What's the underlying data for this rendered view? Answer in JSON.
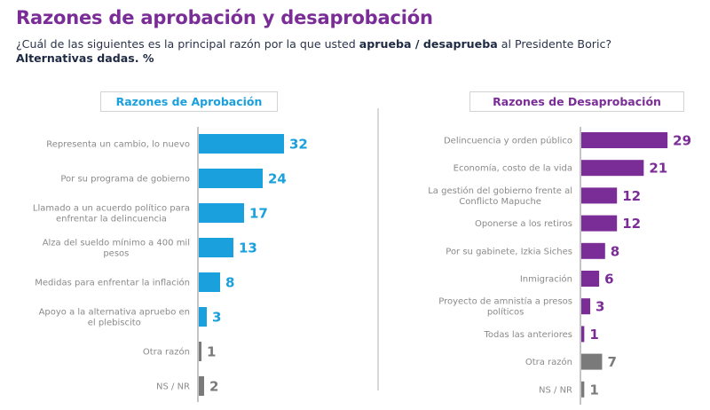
{
  "header": {
    "title": "Razones de aprobación y desaprobación",
    "subtitle_pre": "¿Cuál de las siguientes es la principal razón por la que usted ",
    "subtitle_bold": "aprueba / desaprueba",
    "subtitle_post": " al Presidente Boric?",
    "subtitle_line2": "Alternativas dadas. %"
  },
  "colors": {
    "approval": "#1aa0dc",
    "disapproval": "#7b2d97",
    "other": "#7a7a7a",
    "title": "#7b2d97"
  },
  "chart_data": [
    {
      "type": "bar",
      "orientation": "horizontal",
      "title": "Razones de Aprobación",
      "unit": "%",
      "categories": [
        [
          "Representa un cambio, lo nuevo"
        ],
        [
          "Por su programa de gobierno"
        ],
        [
          "Llamado a un acuerdo político para",
          "enfrentar la delincuencia"
        ],
        [
          "Alza del sueldo mínimo a 400 mil",
          "pesos"
        ],
        [
          "Medidas para enfrentar la inflación"
        ],
        [
          "Apoyo a la alternativa apruebo en",
          "el plebiscito"
        ],
        [
          "Otra razón"
        ],
        [
          "NS / NR"
        ]
      ],
      "values": [
        32,
        24,
        17,
        13,
        8,
        3,
        1,
        2
      ],
      "bar_color_group": [
        "main",
        "main",
        "main",
        "main",
        "main",
        "main",
        "other",
        "other"
      ],
      "grid": false,
      "legend": "none"
    },
    {
      "type": "bar",
      "orientation": "horizontal",
      "title": "Razones de Desaprobación",
      "unit": "%",
      "categories": [
        [
          "Delincuencia y orden público"
        ],
        [
          "Economía, costo de la vida"
        ],
        [
          "La gestión del gobierno frente al",
          "Conflicto Mapuche"
        ],
        [
          "Oponerse a los retiros"
        ],
        [
          "Por su gabinete, Izkia Siches"
        ],
        [
          "Inmigración"
        ],
        [
          "Proyecto de amnistía a presos",
          "políticos"
        ],
        [
          "Todas las anteriores"
        ],
        [
          "Otra razón"
        ],
        [
          "NS / NR"
        ]
      ],
      "values": [
        29,
        21,
        12,
        12,
        8,
        6,
        3,
        1,
        7,
        1
      ],
      "bar_color_group": [
        "main",
        "main",
        "main",
        "main",
        "main",
        "main",
        "main",
        "main",
        "other",
        "other"
      ],
      "grid": false,
      "legend": "none"
    }
  ]
}
